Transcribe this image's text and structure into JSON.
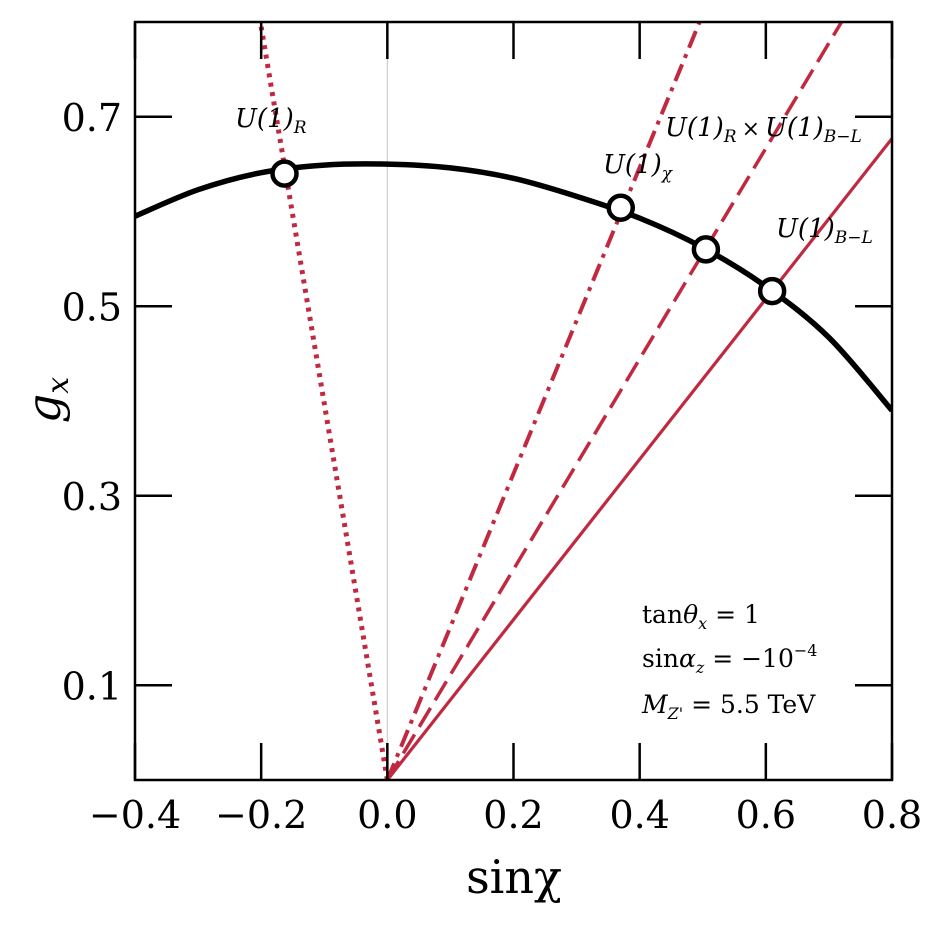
{
  "chart_data": {
    "type": "line",
    "xlabel": "sinχ",
    "ylabel": "g_x",
    "xlim": [
      -0.4,
      0.8
    ],
    "ylim": [
      0.0,
      0.8
    ],
    "xticks": [
      -0.4,
      -0.2,
      0.0,
      0.2,
      0.4,
      0.6,
      0.8
    ],
    "xtick_labels": [
      "−0.4",
      "−0.2",
      "0.0",
      "0.2",
      "0.4",
      "0.6",
      "0.8"
    ],
    "yticks": [
      0.1,
      0.3,
      0.5,
      0.7
    ],
    "ytick_labels": [
      "0.1",
      "0.3",
      "0.5",
      "0.7"
    ],
    "grid": false,
    "curve": {
      "name": "g_x(sinχ)",
      "color": "#000000",
      "x": [
        -0.4,
        -0.3,
        -0.2,
        -0.1,
        0.0,
        0.1,
        0.2,
        0.3,
        0.4,
        0.5,
        0.6,
        0.7,
        0.8
      ],
      "y": [
        0.595,
        0.623,
        0.641,
        0.649,
        0.65,
        0.646,
        0.635,
        0.616,
        0.593,
        0.562,
        0.521,
        0.467,
        0.39
      ]
    },
    "series": [
      {
        "name": "U(1)_R",
        "style": "dotted",
        "color": "#c0293f",
        "x": [
          0.0,
          -0.2
        ],
        "y": [
          0.0,
          0.795
        ]
      },
      {
        "name": "U(1)_χ",
        "style": "dashdot",
        "color": "#c0293f",
        "x": [
          0.0,
          0.495
        ],
        "y": [
          0.0,
          0.8
        ]
      },
      {
        "name": "U(1)_R × U(1)_B−L",
        "style": "dashed",
        "color": "#c0293f",
        "x": [
          0.0,
          0.72
        ],
        "y": [
          0.0,
          0.8
        ]
      },
      {
        "name": "U(1)_B−L",
        "style": "solid",
        "color": "#c0293f",
        "x": [
          0.0,
          0.8
        ],
        "y": [
          0.0,
          0.677
        ]
      }
    ],
    "points": [
      {
        "label": "U(1)_R",
        "x": -0.163,
        "y": 0.64
      },
      {
        "label": "U(1)_χ",
        "x": 0.37,
        "y": 0.604
      },
      {
        "label": "U(1)_R × U(1)_B−L",
        "x": 0.505,
        "y": 0.56
      },
      {
        "label": "U(1)_B−L",
        "x": 0.61,
        "y": 0.516
      }
    ],
    "series_labels": [
      {
        "base": "U(1)",
        "sub": "R"
      },
      {
        "base": "U(1)",
        "sub": "χ"
      },
      {
        "base": "U(1)",
        "sub": "R",
        "times": "×",
        "base2": "U(1)",
        "sub2": "B−L"
      },
      {
        "base": "U(1)",
        "sub": "B−L"
      }
    ],
    "annotations": [
      {
        "pre": "tan",
        "sym": "θ",
        "sub": "x",
        "post": " = 1"
      },
      {
        "pre": "sin",
        "sym": "α",
        "sub": "z",
        "post": " = −10",
        "sup": "−4"
      },
      {
        "sym": "M",
        "sub": "Z'",
        "post": " = 5.5 TeV"
      }
    ]
  }
}
